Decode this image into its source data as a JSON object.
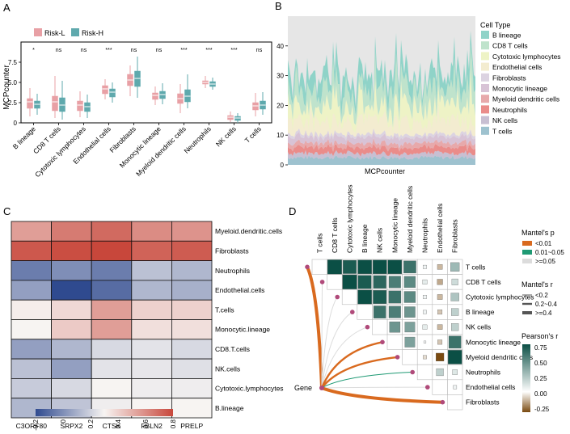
{
  "colors": {
    "risk_l": "#e8a0a5",
    "risk_h": "#5fa9ad",
    "heat_low": "#2f4a8f",
    "heat_mid": "#f7f4f2",
    "heat_high": "#c8473b",
    "mantel_lt001": "#d96a1f",
    "mantel_mid": "#1f9a74",
    "mantel_high": "#dcdcdc",
    "pearson_high": "#0b4f45",
    "pearson_low": "#7a4a10",
    "area_bg": "#e6e6e6"
  },
  "chart_data": [
    {
      "panel": "A",
      "type": "box",
      "legend": [
        "Risk-L",
        "Risk-H"
      ],
      "ylabel": "MCPcounter",
      "ylim": [
        0,
        10
      ],
      "yticks": [
        0,
        2.5,
        5.0,
        7.5
      ],
      "ytick_labels": [
        "0",
        "2.5",
        "5.0",
        "7.5"
      ],
      "categories": [
        "B lineage",
        "CD8 T cells",
        "Cytotoxic lymphocytes",
        "Endothelial cells",
        "Fibroblasts",
        "Monocytic lineage",
        "Myeloid dendritic cells",
        "Neutrophils",
        "NK cells",
        "T cells"
      ],
      "significance": [
        "*",
        "ns",
        "ns",
        "***",
        "ns",
        "ns",
        "***",
        "***",
        "***",
        "ns"
      ],
      "series": [
        {
          "name": "Risk-L",
          "boxes": [
            [
              0.8,
              1.8,
              2.6,
              3.0,
              4.3
            ],
            [
              0.6,
              1.5,
              2.6,
              3.3,
              5.8
            ],
            [
              0.7,
              1.5,
              2.2,
              2.7,
              3.9
            ],
            [
              2.9,
              3.6,
              4.2,
              4.6,
              5.4
            ],
            [
              3.3,
              4.6,
              5.3,
              6.0,
              7.1
            ],
            [
              2.2,
              2.9,
              3.4,
              3.7,
              4.5
            ],
            [
              1.2,
              2.4,
              3.0,
              3.6,
              4.8
            ],
            [
              4.3,
              4.8,
              5.0,
              5.2,
              5.8
            ],
            [
              0.1,
              0.4,
              0.7,
              0.9,
              1.4
            ],
            [
              0.8,
              1.6,
              2.1,
              2.5,
              3.7
            ]
          ]
        },
        {
          "name": "Risk-H",
          "boxes": [
            [
              1.0,
              1.8,
              2.3,
              2.7,
              3.6
            ],
            [
              0.4,
              1.4,
              2.2,
              3.1,
              5.2
            ],
            [
              0.6,
              1.4,
              2.0,
              2.5,
              3.5
            ],
            [
              2.5,
              3.2,
              3.8,
              4.2,
              5.0
            ],
            [
              3.1,
              4.5,
              5.5,
              6.4,
              8.2
            ],
            [
              2.3,
              3.0,
              3.5,
              3.9,
              4.9
            ],
            [
              1.8,
              2.6,
              3.3,
              4.1,
              6.0
            ],
            [
              4.1,
              4.5,
              4.8,
              5.1,
              5.6
            ],
            [
              0.0,
              0.3,
              0.6,
              0.8,
              1.2
            ],
            [
              1.0,
              1.7,
              2.2,
              2.7,
              3.8
            ]
          ]
        }
      ]
    },
    {
      "panel": "B",
      "type": "area",
      "title": "",
      "xlabel": "MCPcounter",
      "ylabel": "",
      "ylim": [
        0,
        50
      ],
      "yticks": [
        0,
        10,
        20,
        30,
        40
      ],
      "legend_title": "Cell Type",
      "legend_entries": [
        "B lineage",
        "CD8 T cells",
        "Cytotoxic lymphocytes",
        "Endothelial cells",
        "Fibroblasts",
        "Monocytic lineage",
        "Myeloid dendritic cells",
        "Neutrophils",
        "NK cells",
        "T cells"
      ],
      "legend_colors": [
        "#8fd3c8",
        "#bfe3cc",
        "#eef3c6",
        "#f3ecd0",
        "#dcd3e1",
        "#d8c3d6",
        "#e7a9ab",
        "#ea8c8a",
        "#c8bfd2",
        "#9ec2cf"
      ],
      "stack_mean_values_bottom_to_top": [
        2.5,
        1.5,
        2.0,
        1.5,
        2.0,
        1.0,
        4.0,
        5.0,
        5.5,
        5.0
      ]
    },
    {
      "panel": "C",
      "type": "heatmap",
      "columns": [
        "C3ORF80",
        "SRPX2",
        "CTSK",
        "FBLN2",
        "PRELP"
      ],
      "rows": [
        "Myeloid.dendritic.cells",
        "Fibroblasts",
        "Neutrophils",
        "Endothelial.cells",
        "T.cells",
        "Monocytic.lineage",
        "CD8.T.cells",
        "NK.cells",
        "Cytotoxic.lymphocytes",
        "B.lineage"
      ],
      "values": [
        [
          0.55,
          0.65,
          0.7,
          0.6,
          0.58
        ],
        [
          0.75,
          0.78,
          0.8,
          0.72,
          0.74
        ],
        [
          -0.05,
          0.0,
          -0.05,
          0.15,
          0.12
        ],
        [
          0.05,
          -0.2,
          -0.1,
          0.12,
          0.1
        ],
        [
          0.32,
          0.38,
          0.55,
          0.4,
          0.4
        ],
        [
          0.3,
          0.42,
          0.55,
          0.36,
          0.36
        ],
        [
          0.05,
          0.12,
          0.22,
          0.25,
          0.22
        ],
        [
          0.15,
          0.05,
          0.25,
          0.26,
          0.24
        ],
        [
          0.18,
          0.22,
          0.3,
          0.28,
          0.28
        ],
        [
          0.12,
          0.16,
          0.28,
          0.3,
          0.3
        ]
      ],
      "colorbar_min": -0.2,
      "colorbar_max": 0.8,
      "colorbar_ticks": [
        -0.2,
        0,
        0.2,
        0.4,
        0.6,
        0.8
      ],
      "colorbar_tick_labels": [
        "-0.2",
        "0",
        "0.2",
        "0.4",
        "0.6",
        "0.8"
      ]
    },
    {
      "panel": "D",
      "type": "correlation_triangle",
      "variables": [
        "T cells",
        "CD8 T cells",
        "Cytotoxic lymphocytes",
        "B lineage",
        "NK cells",
        "Monocytic lineage",
        "Myeloid dendritic cells",
        "Neutrophils",
        "Endothelial cells",
        "Fibroblasts"
      ],
      "gene_label": "Gene",
      "pearson": [
        [
          0.8,
          0.7,
          0.75,
          0.75,
          0.75,
          0.6,
          0.05,
          -0.1,
          0.3
        ],
        [
          0.8,
          0.7,
          0.65,
          0.55,
          0.5,
          0.08,
          -0.12,
          0.15
        ],
        [
          0.75,
          0.7,
          0.6,
          0.5,
          0.05,
          -0.1,
          0.25
        ],
        [
          0.6,
          0.55,
          0.45,
          0.05,
          -0.08,
          0.2
        ],
        [
          0.45,
          0.4,
          0.08,
          -0.1,
          0.2
        ],
        [
          0.4,
          0.02,
          -0.08,
          0.6
        ],
        [
          -0.05,
          -0.25,
          0.75
        ],
        [
          0.2,
          0.1
        ],
        [
          0.05
        ]
      ],
      "mantel_links": [
        {
          "to": "T cells",
          "p": "<0.01",
          "r": ">=0.4"
        },
        {
          "to": "CD8 T cells",
          "p": ">=0.05",
          "r": "<0.2"
        },
        {
          "to": "Cytotoxic lymphocytes",
          "p": ">=0.05",
          "r": "<0.2"
        },
        {
          "to": "B lineage",
          "p": ">=0.05",
          "r": "<0.2"
        },
        {
          "to": "NK cells",
          "p": ">=0.05",
          "r": "<0.2"
        },
        {
          "to": "Monocytic lineage",
          "p": "<0.01",
          "r": "0.2-0.4"
        },
        {
          "to": "Myeloid dendritic cells",
          "p": "<0.01",
          "r": "0.2-0.4"
        },
        {
          "to": "Neutrophils",
          "p": "0.01-0.05",
          "r": "<0.2"
        },
        {
          "to": "Endothelial cells",
          "p": ">=0.05",
          "r": "<0.2"
        },
        {
          "to": "Fibroblasts",
          "p": "<0.01",
          "r": ">=0.4"
        }
      ],
      "legend_p_title": "Mantel's p",
      "legend_p_labels": [
        "<0.01",
        "0.01~0.05",
        ">=0.05"
      ],
      "legend_r_title": "Mantel's r",
      "legend_r_labels": [
        "<0.2",
        "0.2~0.4",
        ">=0.4"
      ],
      "legend_pearson_title": "Pearson's r",
      "legend_pearson_ticks": [
        0.75,
        0.5,
        0.25,
        0.0,
        -0.25
      ],
      "legend_pearson_tick_labels": [
        "0.75",
        "0.50",
        "0.25",
        "0.00",
        "-0.25"
      ]
    }
  ],
  "panel_labels": [
    "A",
    "B",
    "C",
    "D"
  ]
}
